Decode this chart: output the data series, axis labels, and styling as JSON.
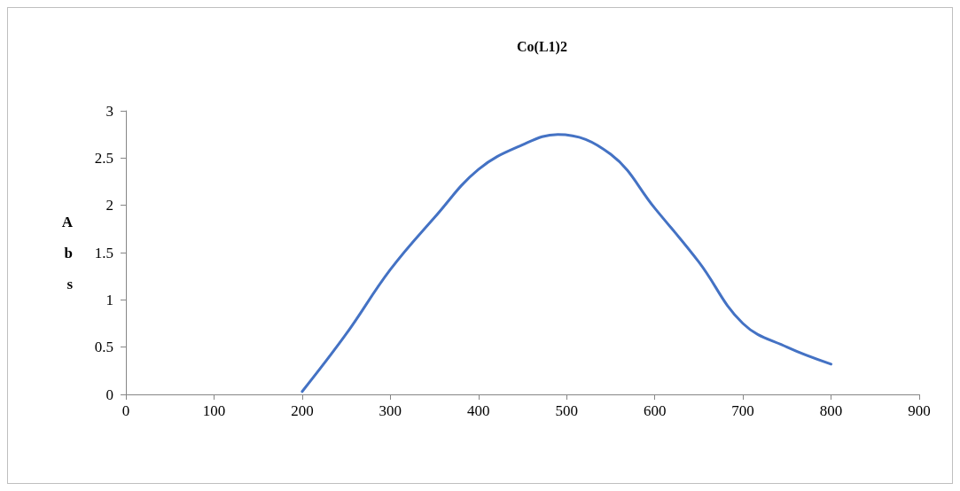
{
  "chart_data": {
    "type": "line",
    "title": "Co(L1)2",
    "ylabel": "Abs",
    "x": [
      200,
      250,
      300,
      350,
      400,
      450,
      490,
      550,
      600,
      650,
      700,
      750,
      800
    ],
    "series": [
      {
        "color": "#4472c4",
        "values": [
          0.03,
          0.64,
          1.32,
          1.87,
          2.38,
          2.64,
          2.75,
          2.54,
          1.97,
          1.4,
          0.75,
          0.5,
          0.32
        ]
      }
    ],
    "xlim": [
      0,
      900
    ],
    "xticks": [
      0,
      100,
      200,
      300,
      400,
      500,
      600,
      700,
      800,
      900
    ],
    "ylim": [
      0,
      3
    ],
    "yticks": [
      0,
      0.5,
      1,
      1.5,
      2,
      2.5,
      3
    ],
    "grid": false,
    "marker": "none",
    "line_style": "solid"
  }
}
